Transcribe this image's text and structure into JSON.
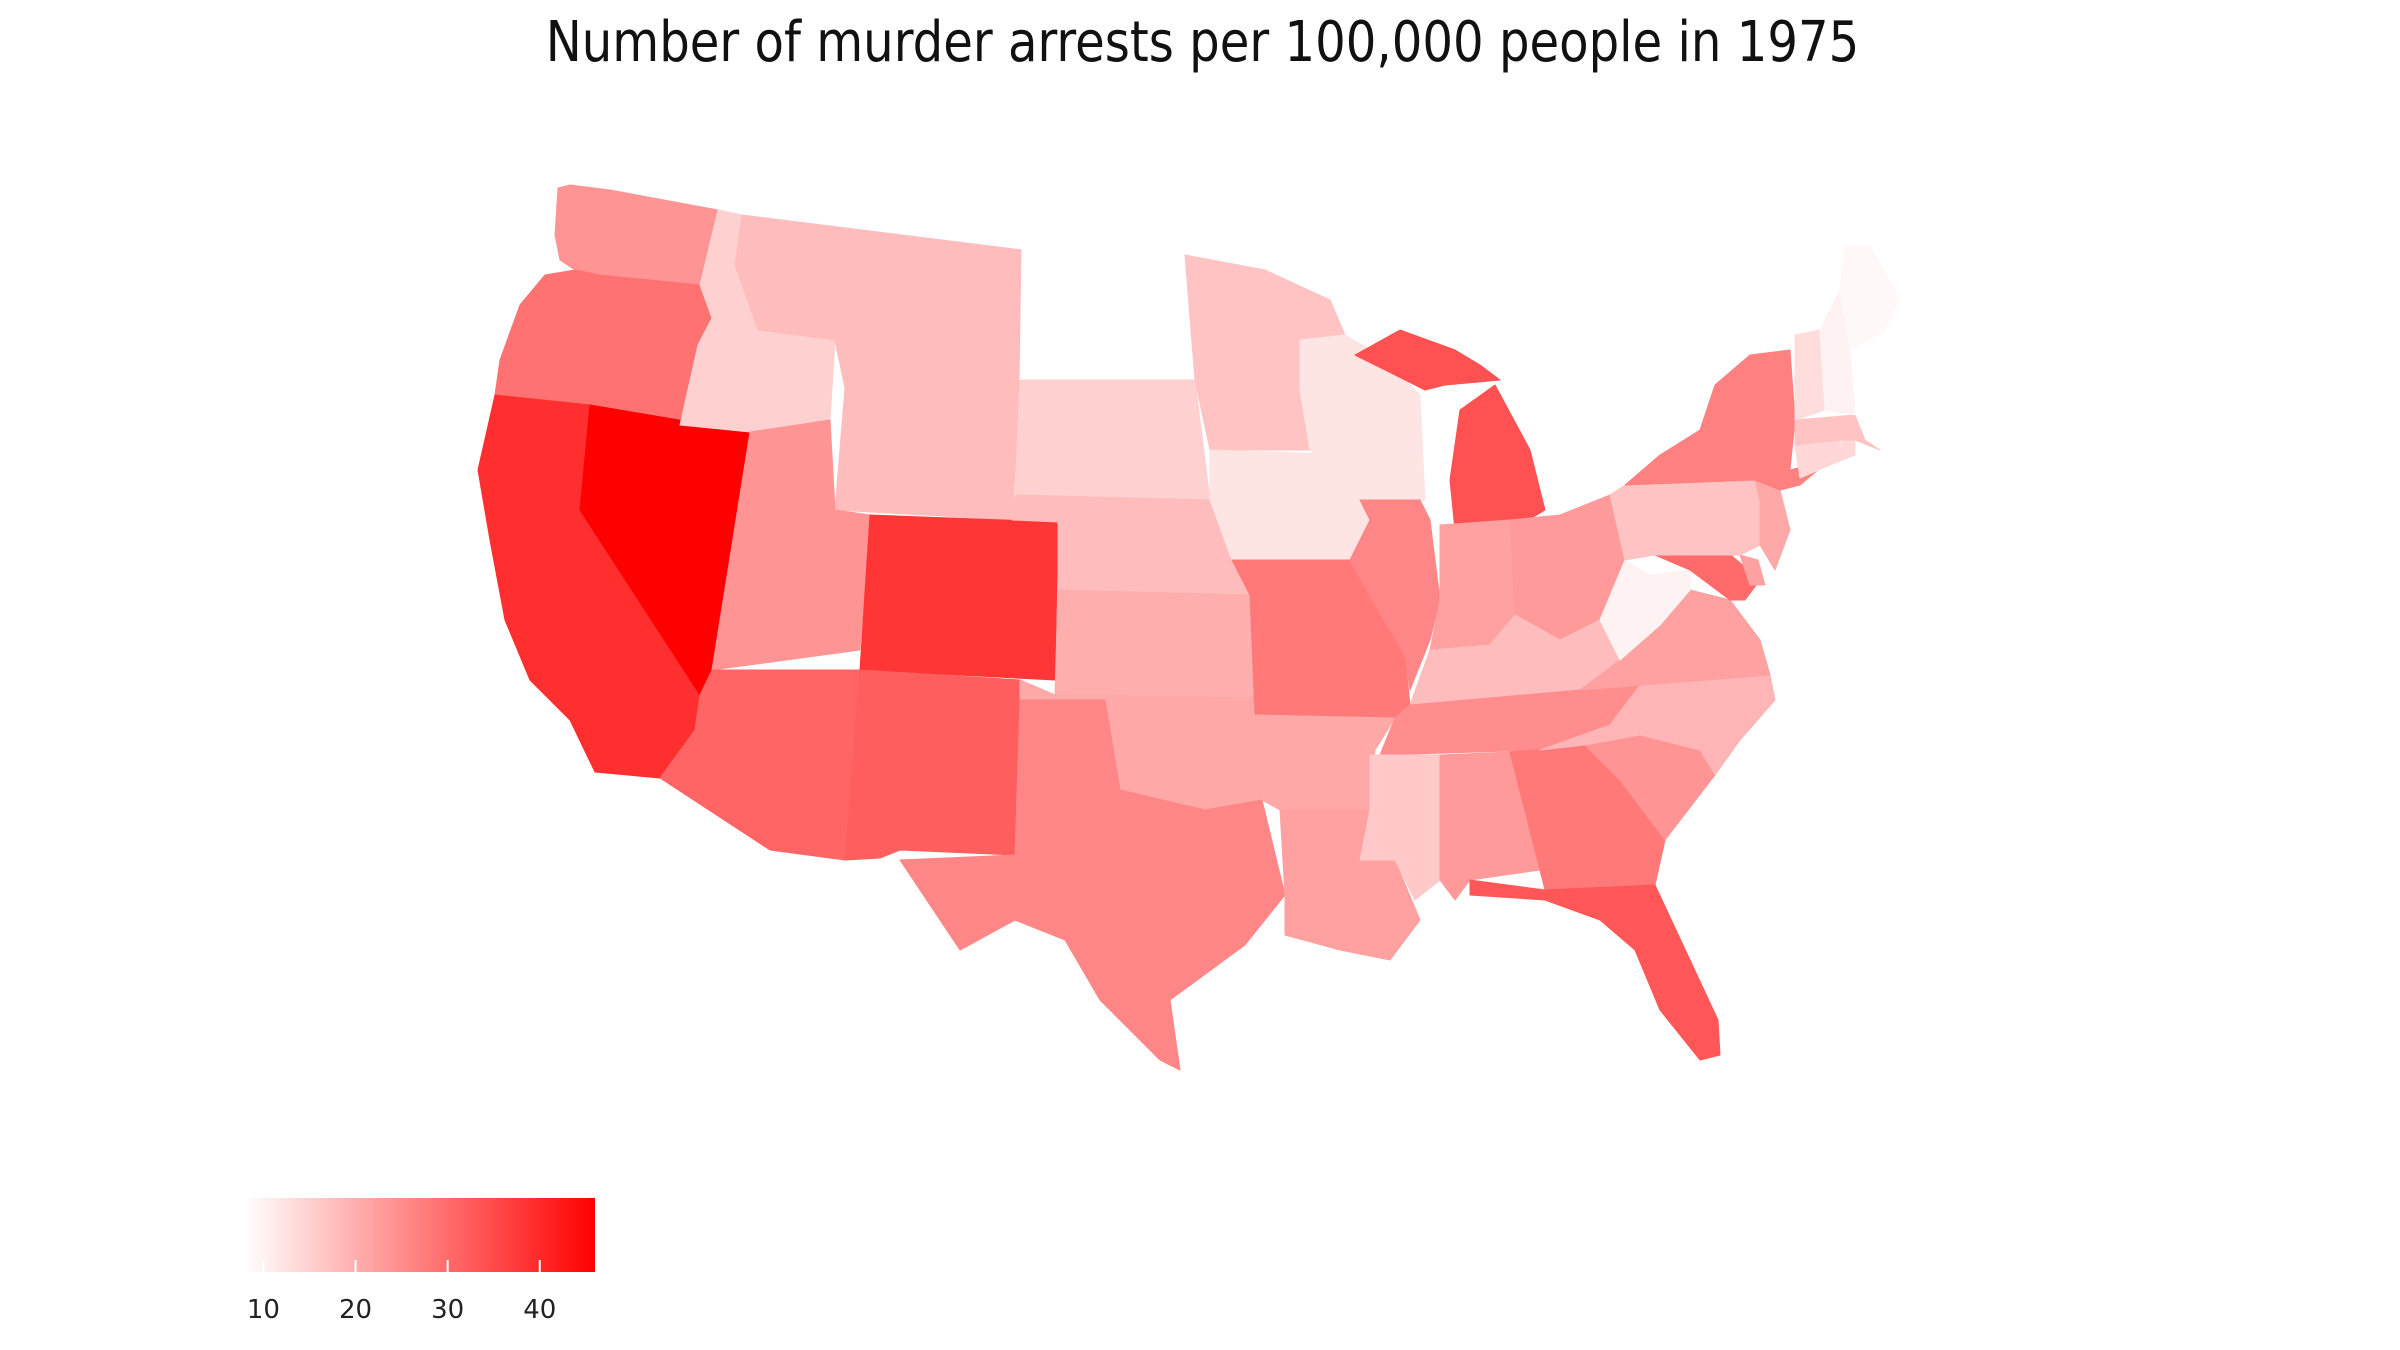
{
  "title": "Number of murder arrests per 100,000 people in 1975",
  "color_scale": {
    "low_color": "#ffffff",
    "high_color": "#ff0000",
    "min": 8,
    "max": 46
  },
  "legend": {
    "ticks": [
      "10",
      "20",
      "30",
      "40"
    ],
    "tick_values": [
      10,
      20,
      30,
      40
    ]
  },
  "chart_data": {
    "type": "choropleth",
    "title": "Number of murder arrests per 100,000 people in 1975",
    "metric": "murder arrests per 100,000 people",
    "legend_ticks": [
      10,
      20,
      30,
      40
    ],
    "states": [
      {
        "state": "Washington",
        "value": 24
      },
      {
        "state": "Oregon",
        "value": 29
      },
      {
        "state": "California",
        "value": 39
      },
      {
        "state": "Nevada",
        "value": 46
      },
      {
        "state": "Idaho",
        "value": 15
      },
      {
        "state": "Montana",
        "value": 18
      },
      {
        "state": "Wyoming",
        "value": 18
      },
      {
        "state": "Utah",
        "value": 24
      },
      {
        "state": "Colorado",
        "value": 38
      },
      {
        "state": "Arizona",
        "value": 31
      },
      {
        "state": "New Mexico",
        "value": 32
      },
      {
        "state": "North Dakota",
        "value": 8
      },
      {
        "state": "South Dakota",
        "value": 15
      },
      {
        "state": "Nebraska",
        "value": 18
      },
      {
        "state": "Kansas",
        "value": 20
      },
      {
        "state": "Oklahoma",
        "value": 21
      },
      {
        "state": "Texas",
        "value": 26
      },
      {
        "state": "Minnesota",
        "value": 17
      },
      {
        "state": "Iowa",
        "value": 12
      },
      {
        "state": "Missouri",
        "value": 28
      },
      {
        "state": "Arkansas",
        "value": 21
      },
      {
        "state": "Louisiana",
        "value": 22
      },
      {
        "state": "Wisconsin",
        "value": 12
      },
      {
        "state": "Illinois",
        "value": 26
      },
      {
        "state": "Michigan",
        "value": 34
      },
      {
        "state": "Indiana",
        "value": 22
      },
      {
        "state": "Ohio",
        "value": 23
      },
      {
        "state": "Kentucky",
        "value": 18
      },
      {
        "state": "Tennessee",
        "value": 25
      },
      {
        "state": "Mississippi",
        "value": 16
      },
      {
        "state": "Alabama",
        "value": 23
      },
      {
        "state": "Georgia",
        "value": 28
      },
      {
        "state": "Florida",
        "value": 33
      },
      {
        "state": "South Carolina",
        "value": 24
      },
      {
        "state": "North Carolina",
        "value": 19
      },
      {
        "state": "Virginia",
        "value": 22
      },
      {
        "state": "West Virginia",
        "value": 10
      },
      {
        "state": "Maryland",
        "value": 30
      },
      {
        "state": "Delaware",
        "value": 22
      },
      {
        "state": "Pennsylvania",
        "value": 17
      },
      {
        "state": "New Jersey",
        "value": 21
      },
      {
        "state": "New York",
        "value": 27
      },
      {
        "state": "Connecticut",
        "value": 14
      },
      {
        "state": "Rhode Island",
        "value": 14
      },
      {
        "state": "Massachusetts",
        "value": 17
      },
      {
        "state": "Vermont",
        "value": 13
      },
      {
        "state": "New Hampshire",
        "value": 10
      },
      {
        "state": "Maine",
        "value": 9
      }
    ]
  }
}
